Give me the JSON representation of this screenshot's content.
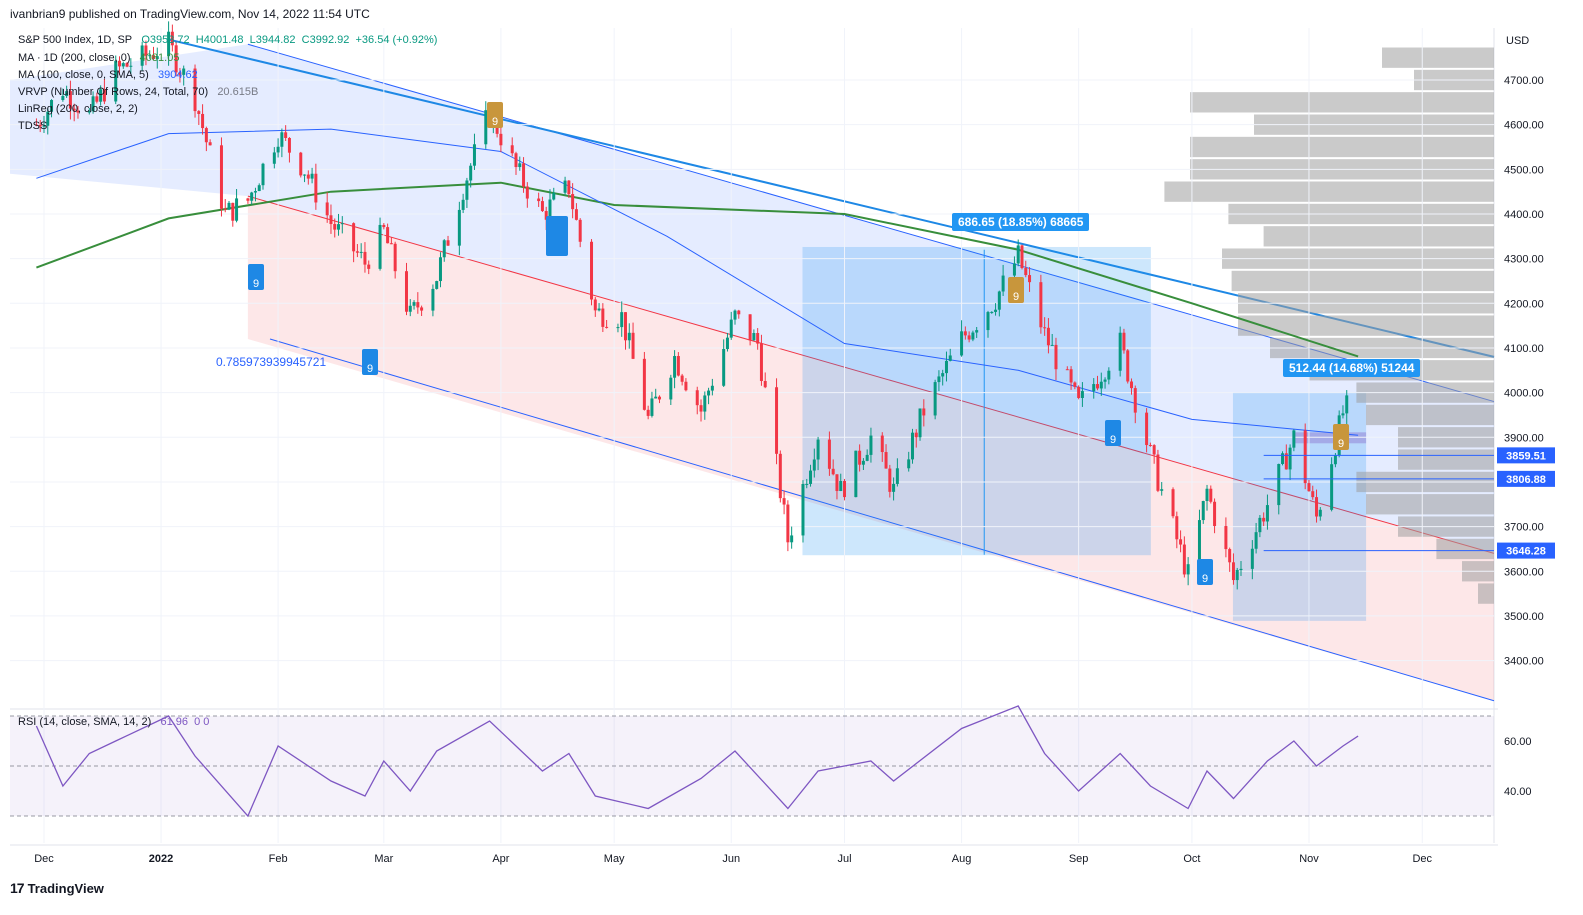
{
  "publish_line": "ivanbrian9 published on TradingView.com, Nov 14, 2022 11:54 UTC",
  "legend": {
    "symbol": "S&P 500 Index, 1D, SP",
    "ohlc_o": "O3953.72",
    "ohlc_h": "H4001.48",
    "ohlc_l": "L3944.82",
    "ohlc_c": "C3992.92",
    "ohlc_change": "+36.54 (+0.92%)",
    "ma200_label": "MA · 1D (200, close, 0)",
    "ma200_value": "4081.05",
    "ma100_label": "MA (100, close, 0, SMA, 5)",
    "ma100_value": "3904.62",
    "vrvp_label": "VRVP (Number Of Rows, 24, Total, 70)",
    "vrvp_value": "20.615B",
    "linreg_label": "LinReg (200, close, 2, 2)",
    "tdss_label": "TDSS",
    "rsi_label": "RSI (14, close, SMA, 14, 2)",
    "rsi_value": "61.96",
    "rsi_extra": "0  0"
  },
  "annotations": {
    "measure_big": "686.65 (18.85%) 68665",
    "measure_small": "512.44 (14.68%) 51244",
    "fib_ratio": "0.785973939945721",
    "td_nine": "9"
  },
  "price_tags": [
    {
      "value": 3859.51,
      "label": "3859.51"
    },
    {
      "value": 3806.88,
      "label": "3806.88"
    },
    {
      "value": 3646.28,
      "label": "3646.28"
    }
  ],
  "footer": {
    "logo_mark": "17",
    "brand": "TradingView"
  },
  "colors": {
    "up": "#089981",
    "down": "#f23645",
    "ma200": "#388e3c",
    "ma100": "#2962ff",
    "channel": "#2962ff",
    "rsi": "#7e57c2"
  },
  "chart_data": [
    {
      "type": "candlestick",
      "title": "S&P 500 Index, 1D, SP",
      "currency": "USD",
      "x_ticks": [
        "Dec",
        "2022",
        "Feb",
        "Mar",
        "Apr",
        "May",
        "Jun",
        "Jul",
        "Aug",
        "Sep",
        "Oct",
        "Nov",
        "Dec"
      ],
      "y_ticks": [
        {
          "v": 4700,
          "label": "4700.00"
        },
        {
          "v": 4600,
          "label": "4600.00"
        },
        {
          "v": 4500,
          "label": "4500.00"
        },
        {
          "v": 4400,
          "label": "4400.00"
        },
        {
          "v": 4300,
          "label": "4300.00"
        },
        {
          "v": 4200,
          "label": "4200.00"
        },
        {
          "v": 4100,
          "label": "4100.00"
        },
        {
          "v": 4000,
          "label": "4000.00"
        },
        {
          "v": 3900,
          "label": "3900.00"
        },
        {
          "v": 3800,
          "label": "3800.00"
        },
        {
          "v": 3700,
          "label": "3700.00"
        },
        {
          "v": 3600,
          "label": "3600.00"
        },
        {
          "v": 3500,
          "label": "3500.00"
        },
        {
          "v": 3400,
          "label": "3400.00"
        }
      ],
      "ylim": [
        3300,
        4800
      ],
      "close_path": [
        [
          "2021-11-29",
          4600
        ],
        [
          "2021-12-06",
          4680
        ],
        [
          "2021-12-13",
          4620
        ],
        [
          "2021-12-20",
          4720
        ],
        [
          "2022-01-03",
          4780
        ],
        [
          "2022-01-10",
          4660
        ],
        [
          "2022-01-18",
          4400
        ],
        [
          "2022-01-24",
          4430
        ],
        [
          "2022-02-01",
          4580
        ],
        [
          "2022-02-08",
          4500
        ],
        [
          "2022-02-15",
          4380
        ],
        [
          "2022-02-24",
          4290
        ],
        [
          "2022-03-01",
          4360
        ],
        [
          "2022-03-08",
          4170
        ],
        [
          "2022-03-15",
          4260
        ],
        [
          "2022-03-22",
          4460
        ],
        [
          "2022-03-29",
          4630
        ],
        [
          "2022-04-05",
          4500
        ],
        [
          "2022-04-12",
          4400
        ],
        [
          "2022-04-19",
          4460
        ],
        [
          "2022-04-26",
          4180
        ],
        [
          "2022-05-03",
          4170
        ],
        [
          "2022-05-10",
          3940
        ],
        [
          "2022-05-17",
          4080
        ],
        [
          "2022-05-24",
          3960
        ],
        [
          "2022-06-02",
          4170
        ],
        [
          "2022-06-08",
          4110
        ],
        [
          "2022-06-16",
          3670
        ],
        [
          "2022-06-24",
          3910
        ],
        [
          "2022-06-30",
          3780
        ],
        [
          "2022-07-08",
          3900
        ],
        [
          "2022-07-14",
          3780
        ],
        [
          "2022-07-22",
          3960
        ],
        [
          "2022-08-01",
          4120
        ],
        [
          "2022-08-10",
          4210
        ],
        [
          "2022-08-16",
          4305
        ],
        [
          "2022-08-23",
          4130
        ],
        [
          "2022-09-01",
          3970
        ],
        [
          "2022-09-12",
          4110
        ],
        [
          "2022-09-20",
          3860
        ],
        [
          "2022-09-30",
          3590
        ],
        [
          "2022-10-05",
          3780
        ],
        [
          "2022-10-12",
          3580
        ],
        [
          "2022-10-21",
          3750
        ],
        [
          "2022-10-28",
          3900
        ],
        [
          "2022-11-03",
          3720
        ],
        [
          "2022-11-10",
          3955
        ],
        [
          "2022-11-14",
          3992.92
        ]
      ],
      "ma200": [
        [
          "2021-11-29",
          4280
        ],
        [
          "2022-01-03",
          4390
        ],
        [
          "2022-02-15",
          4450
        ],
        [
          "2022-04-01",
          4470
        ],
        [
          "2022-05-01",
          4420
        ],
        [
          "2022-07-01",
          4400
        ],
        [
          "2022-08-16",
          4320
        ],
        [
          "2022-10-01",
          4200
        ],
        [
          "2022-11-14",
          4081.05
        ]
      ],
      "ma100": [
        [
          "2021-11-29",
          4480
        ],
        [
          "2022-01-03",
          4580
        ],
        [
          "2022-02-15",
          4590
        ],
        [
          "2022-04-01",
          4540
        ],
        [
          "2022-05-15",
          4350
        ],
        [
          "2022-07-01",
          4110
        ],
        [
          "2022-08-16",
          4050
        ],
        [
          "2022-10-01",
          3940
        ],
        [
          "2022-11-14",
          3904.62
        ]
      ],
      "volume_profile_rows": [
        [
          4750,
          35
        ],
        [
          4700,
          25
        ],
        [
          4650,
          95
        ],
        [
          4600,
          75
        ],
        [
          4550,
          95
        ],
        [
          4500,
          95
        ],
        [
          4450,
          103
        ],
        [
          4400,
          83
        ],
        [
          4350,
          72
        ],
        [
          4300,
          85
        ],
        [
          4250,
          82
        ],
        [
          4200,
          80
        ],
        [
          4150,
          80
        ],
        [
          4100,
          70
        ],
        [
          4050,
          58
        ],
        [
          4000,
          43
        ],
        [
          3950,
          40
        ],
        [
          3900,
          30
        ],
        [
          3850,
          30
        ],
        [
          3800,
          43
        ],
        [
          3750,
          40
        ],
        [
          3700,
          30
        ],
        [
          3650,
          18
        ],
        [
          3600,
          10
        ],
        [
          3550,
          5
        ]
      ]
    },
    {
      "type": "line",
      "title": "RSI (14, close, SMA, 14, 2)",
      "y_ticks": [
        {
          "v": 60,
          "label": "60.00"
        },
        {
          "v": 40,
          "label": "40.00"
        }
      ],
      "ylim": [
        25,
        75
      ],
      "bands": [
        70,
        50,
        30
      ],
      "values": [
        [
          "2021-11-29",
          66
        ],
        [
          "2021-12-06",
          42
        ],
        [
          "2021-12-13",
          55
        ],
        [
          "2021-12-20",
          60
        ],
        [
          "2022-01-03",
          70
        ],
        [
          "2022-01-10",
          54
        ],
        [
          "2022-01-24",
          30
        ],
        [
          "2022-02-01",
          58
        ],
        [
          "2022-02-15",
          44
        ],
        [
          "2022-02-24",
          38
        ],
        [
          "2022-03-01",
          52
        ],
        [
          "2022-03-08",
          40
        ],
        [
          "2022-03-15",
          56
        ],
        [
          "2022-03-29",
          68
        ],
        [
          "2022-04-12",
          48
        ],
        [
          "2022-04-19",
          55
        ],
        [
          "2022-04-26",
          38
        ],
        [
          "2022-05-10",
          33
        ],
        [
          "2022-05-24",
          45
        ],
        [
          "2022-06-02",
          56
        ],
        [
          "2022-06-16",
          33
        ],
        [
          "2022-06-24",
          48
        ],
        [
          "2022-07-08",
          52
        ],
        [
          "2022-07-14",
          44
        ],
        [
          "2022-08-01",
          65
        ],
        [
          "2022-08-16",
          74
        ],
        [
          "2022-08-23",
          55
        ],
        [
          "2022-09-01",
          40
        ],
        [
          "2022-09-12",
          55
        ],
        [
          "2022-09-20",
          42
        ],
        [
          "2022-09-30",
          33
        ],
        [
          "2022-10-05",
          48
        ],
        [
          "2022-10-12",
          37
        ],
        [
          "2022-10-21",
          52
        ],
        [
          "2022-10-28",
          60
        ],
        [
          "2022-11-03",
          50
        ],
        [
          "2022-11-10",
          58
        ],
        [
          "2022-11-14",
          61.96
        ]
      ]
    }
  ]
}
